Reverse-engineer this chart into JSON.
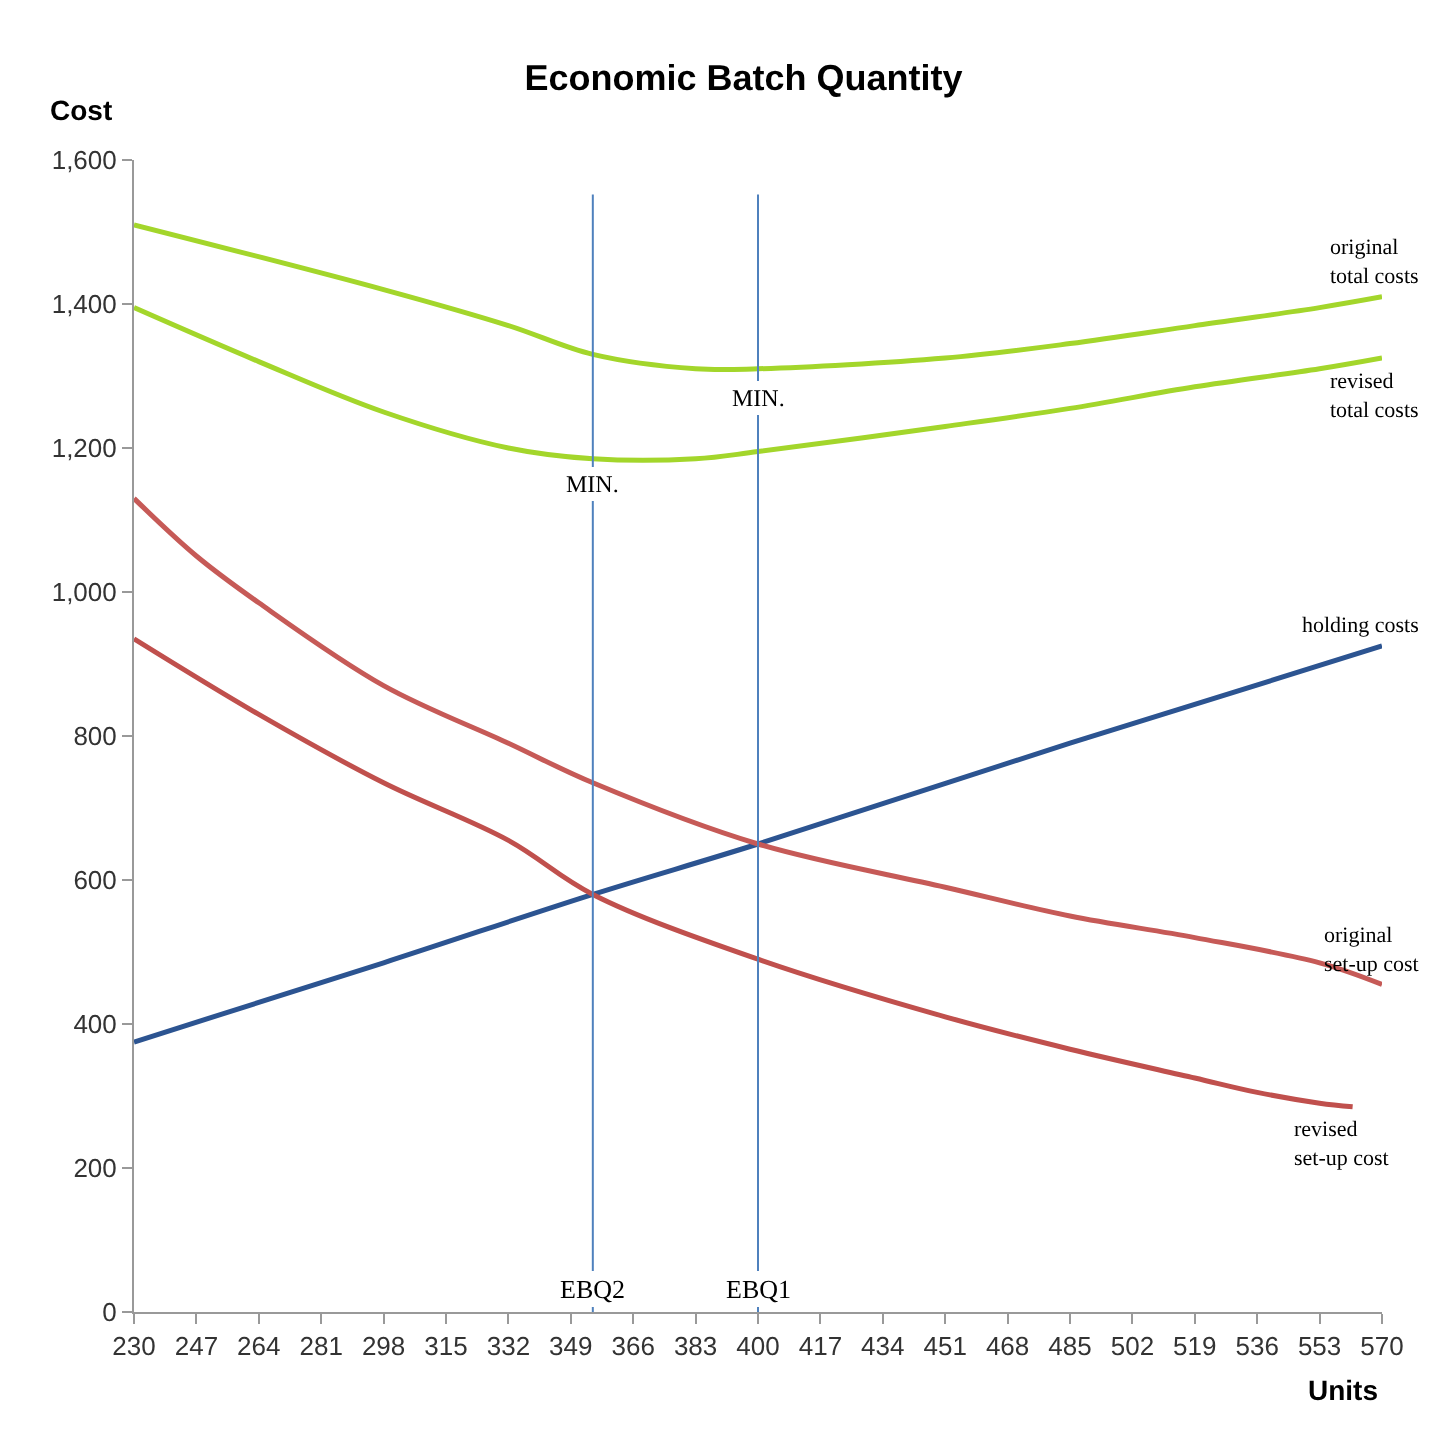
{
  "chart_data": {
    "type": "line",
    "title": "Economic Batch Quantity",
    "xlabel": "Units",
    "ylabel": "Cost",
    "xlim": [
      230,
      570
    ],
    "xticks": [
      230,
      247,
      264,
      281,
      298,
      315,
      332,
      349,
      366,
      383,
      400,
      417,
      434,
      451,
      468,
      485,
      502,
      519,
      536,
      553,
      570
    ],
    "ylim": [
      0,
      1600
    ],
    "yticks": [
      {
        "value": 0,
        "label": "0"
      },
      {
        "value": 200,
        "label": "200"
      },
      {
        "value": 400,
        "label": "400"
      },
      {
        "value": 600,
        "label": "600"
      },
      {
        "value": 800,
        "label": "800"
      },
      {
        "value": 1000,
        "label": "1,000"
      },
      {
        "value": 1200,
        "label": "1,200"
      },
      {
        "value": 1400,
        "label": "1,400"
      },
      {
        "value": 1600,
        "label": "1,600"
      }
    ],
    "legend": false,
    "marker": "none",
    "line_style": "solid",
    "series": [
      {
        "name": "original\ntotal costs",
        "color": "#a3d62b",
        "x": [
          230,
          298,
          332,
          355,
          383,
          400,
          451,
          485,
          519,
          553,
          570
        ],
        "values": [
          1510,
          1420,
          1370,
          1330,
          1310,
          1310,
          1325,
          1345,
          1370,
          1395,
          1410
        ]
      },
      {
        "name": "revised\ntotal costs",
        "color": "#a3d62b",
        "x": [
          230,
          264,
          298,
          332,
          355,
          383,
          400,
          451,
          485,
          519,
          553,
          570
        ],
        "values": [
          1395,
          1320,
          1250,
          1200,
          1185,
          1185,
          1195,
          1230,
          1255,
          1285,
          1310,
          1325
        ]
      },
      {
        "name": "holding costs",
        "color": "#2c5491",
        "x": [
          230,
          298,
          355,
          400,
          485,
          570
        ],
        "values": [
          375,
          485,
          580,
          650,
          790,
          925
        ]
      },
      {
        "name": "original\nset-up cost",
        "color": "#c65a57",
        "x": [
          230,
          247,
          264,
          298,
          332,
          355,
          400,
          451,
          485,
          519,
          553,
          570
        ],
        "values": [
          1130,
          1050,
          985,
          870,
          790,
          735,
          650,
          590,
          550,
          520,
          485,
          455
        ]
      },
      {
        "name": "revised\nset-up cost",
        "color": "#c0504d",
        "x": [
          230,
          264,
          298,
          332,
          355,
          400,
          451,
          485,
          519,
          536,
          553,
          562
        ],
        "values": [
          935,
          830,
          735,
          655,
          580,
          490,
          410,
          365,
          325,
          305,
          290,
          285
        ]
      }
    ],
    "ref_lines": [
      {
        "axis": "x",
        "value": 355,
        "label": "EBQ2",
        "color": "#4f81bd"
      },
      {
        "axis": "x",
        "value": 400,
        "label": "EBQ1",
        "color": "#4f81bd"
      }
    ],
    "annotations": [
      {
        "text": "MIN.",
        "x": 400,
        "y": 1305
      },
      {
        "text": "MIN.",
        "x": 355,
        "y": 1185
      }
    ]
  }
}
